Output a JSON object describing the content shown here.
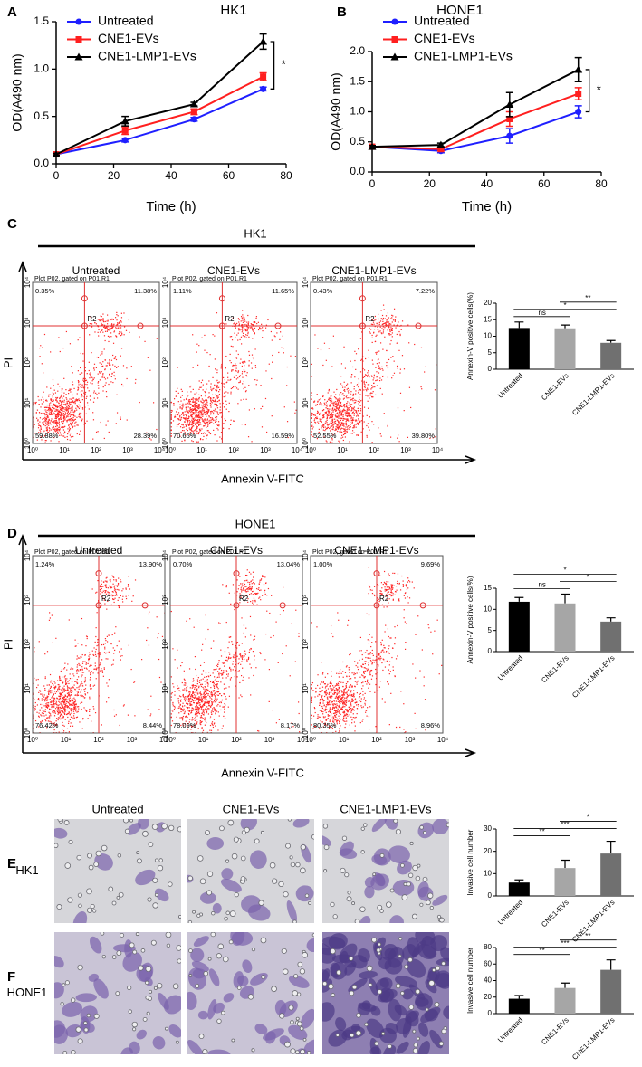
{
  "panel_labels": [
    "A",
    "B",
    "C",
    "D",
    "E",
    "F"
  ],
  "chart_data": [
    {
      "type": "line",
      "title": "HK1",
      "xlabel": "Time (h)",
      "ylabel": "OD(A490 nm)",
      "x": [
        0,
        24,
        48,
        72
      ],
      "xlim": [
        0,
        80
      ],
      "xticks": [
        0,
        20,
        40,
        60,
        80
      ],
      "ylim": [
        0,
        1.5
      ],
      "yticks": [
        {
          "value": 0,
          "label": "0.0"
        },
        {
          "value": 0.5,
          "label": "0.5"
        },
        {
          "value": 1,
          "label": "1.0"
        },
        {
          "value": 1.5,
          "label": "1.5"
        }
      ],
      "legend": "upper left",
      "series": [
        {
          "name": "Untreated",
          "color": "#1f1fff",
          "marker": "circle",
          "values": [
            0.1,
            0.25,
            0.47,
            0.79
          ],
          "errors": [
            0.01,
            0.02,
            0.02,
            0.02
          ]
        },
        {
          "name": "CNE1-EVs",
          "color": "#ff1f1f",
          "marker": "square",
          "values": [
            0.1,
            0.35,
            0.55,
            0.92
          ],
          "errors": [
            0.01,
            0.04,
            0.03,
            0.04
          ]
        },
        {
          "name": "CNE1-LMP1-EVs",
          "color": "#000000",
          "marker": "triangle",
          "values": [
            0.1,
            0.45,
            0.63,
            1.29
          ],
          "errors": [
            0.01,
            0.05,
            0.02,
            0.08
          ]
        }
      ],
      "significance": {
        "label": "*",
        "series": [
          0,
          2
        ]
      }
    },
    {
      "type": "line",
      "title": "HONE1",
      "xlabel": "Time (h)",
      "ylabel": "OD(A490 nm)",
      "x": [
        0,
        24,
        48,
        72
      ],
      "xlim": [
        0,
        80
      ],
      "xticks": [
        0,
        20,
        40,
        60,
        80
      ],
      "ylim": [
        0,
        2
      ],
      "yticks": [
        {
          "value": 0,
          "label": "0.0"
        },
        {
          "value": 0.5,
          "label": "0.5"
        },
        {
          "value": 1,
          "label": "1.0"
        },
        {
          "value": 1.5,
          "label": "1.5"
        },
        {
          "value": 2,
          "label": "2.0"
        }
      ],
      "legend": "upper left",
      "series": [
        {
          "name": "Untreated",
          "color": "#1f1fff",
          "marker": "circle",
          "values": [
            0.42,
            0.35,
            0.6,
            1.0
          ],
          "errors": [
            0.02,
            0.03,
            0.12,
            0.1
          ]
        },
        {
          "name": "CNE1-EVs",
          "color": "#ff1f1f",
          "marker": "square",
          "values": [
            0.42,
            0.38,
            0.88,
            1.3
          ],
          "errors": [
            0.02,
            0.03,
            0.12,
            0.1
          ]
        },
        {
          "name": "CNE1-LMP1-EVs",
          "color": "#000000",
          "marker": "triangle",
          "values": [
            0.42,
            0.45,
            1.12,
            1.7
          ],
          "errors": [
            0.02,
            0.03,
            0.2,
            0.2
          ]
        }
      ],
      "significance": {
        "label": "*",
        "series": [
          0,
          2
        ]
      }
    },
    {
      "type": "bar",
      "ylabel": "Annexin-V positive cells(%)",
      "categories": [
        "Untreated",
        "CNE1-EVs",
        "CNE1-LMP1-EVs"
      ],
      "colors": [
        "#000000",
        "#a6a6a6",
        "#707070"
      ],
      "values": [
        12.5,
        12.4,
        8.0
      ],
      "errors": [
        1.8,
        1.0,
        0.7
      ],
      "ylim": [
        0,
        20
      ],
      "yticks": [
        0,
        5,
        10,
        15,
        20
      ],
      "comparisons": [
        {
          "pair": [
            0,
            1
          ],
          "label": "ns"
        },
        {
          "pair": [
            0,
            2
          ],
          "label": "*"
        },
        {
          "pair": [
            1,
            2
          ],
          "label": "**"
        }
      ]
    },
    {
      "type": "bar",
      "ylabel": "Annexin-V positive cells(%)",
      "categories": [
        "Untreated",
        "CNE1-EVs",
        "CNE1-LMP1-EVs"
      ],
      "colors": [
        "#000000",
        "#a6a6a6",
        "#707070"
      ],
      "values": [
        11.8,
        11.4,
        7.1
      ],
      "errors": [
        1.0,
        2.2,
        0.9
      ],
      "ylim": [
        0,
        15
      ],
      "yticks": [
        0,
        5,
        10,
        15
      ],
      "comparisons": [
        {
          "pair": [
            0,
            1
          ],
          "label": "ns"
        },
        {
          "pair": [
            1,
            2
          ],
          "label": "*"
        },
        {
          "pair": [
            0,
            2
          ],
          "label": "*"
        }
      ]
    },
    {
      "type": "bar",
      "ylabel": "Invasive cell number",
      "categories": [
        "Untreated",
        "CNE1-EVs",
        "CNE1-LMP1-EVs"
      ],
      "colors": [
        "#000000",
        "#a6a6a6",
        "#707070"
      ],
      "values": [
        6,
        12.5,
        19
      ],
      "errors": [
        1.2,
        3.5,
        5.5
      ],
      "ylim": [
        0,
        30
      ],
      "yticks": [
        0,
        10,
        20,
        30
      ],
      "comparisons": [
        {
          "pair": [
            0,
            1
          ],
          "label": "**"
        },
        {
          "pair": [
            0,
            2
          ],
          "label": "***"
        },
        {
          "pair": [
            1,
            2
          ],
          "label": "*"
        }
      ]
    },
    {
      "type": "bar",
      "ylabel": "Invasive cell number",
      "categories": [
        "Untreated",
        "CNE1-EVs",
        "CNE1-LMP1-EVs"
      ],
      "colors": [
        "#000000",
        "#a6a6a6",
        "#707070"
      ],
      "values": [
        18,
        31,
        53
      ],
      "errors": [
        4,
        6,
        12
      ],
      "ylim": [
        0,
        80
      ],
      "yticks": [
        0,
        20,
        40,
        60,
        80
      ],
      "comparisons": [
        {
          "pair": [
            0,
            1
          ],
          "label": "**"
        },
        {
          "pair": [
            0,
            2
          ],
          "label": "***"
        },
        {
          "pair": [
            1,
            2
          ],
          "label": "**"
        }
      ]
    }
  ],
  "flow": [
    {
      "title": "HK1",
      "xlabel": "Annexin V-FITC",
      "ylabel": "PI",
      "ticks": [
        "10⁰",
        "10¹",
        "10²",
        "10³",
        "10⁴"
      ],
      "plots": [
        {
          "title": "Untreated",
          "gate": "Plot P02, gated on P01.R1",
          "region": "R2",
          "quadrants": [
            "0.35%",
            "11.38%",
            "59.88%",
            "28.39%"
          ]
        },
        {
          "title": "CNE1-EVs",
          "gate": "Plot P02, gated on P01.R1",
          "region": "R2",
          "quadrants": [
            "1.11%",
            "11.65%",
            "70.65%",
            "16.59%"
          ]
        },
        {
          "title": "CNE1-LMP1-EVs",
          "gate": "Plot P02, gated on P01.R1",
          "region": "R2",
          "quadrants": [
            "0.43%",
            "7.22%",
            "52.55%",
            "39.80%"
          ]
        }
      ]
    },
    {
      "title": "HONE1",
      "xlabel": "Annexin V-FITC",
      "ylabel": "PI",
      "ticks": [
        "10⁰",
        "10¹",
        "10²",
        "10³",
        "10⁴"
      ],
      "plots": [
        {
          "title": "Untreated",
          "gate": "Plot P02, gated on P01.R1",
          "region": "R2",
          "quadrants": [
            "1.24%",
            "13.90%",
            "76.42%",
            "8.44%"
          ]
        },
        {
          "title": "CNE1-EVs",
          "gate": "Plot P02, gated on P01.R1",
          "region": "R2",
          "quadrants": [
            "0.70%",
            "13.04%",
            "78.09%",
            "8.17%"
          ]
        },
        {
          "title": "CNE1-LMP1-EVs",
          "gate": "Plot P02, gated on P01.R1",
          "region": "R2",
          "quadrants": [
            "1.00%",
            "9.69%",
            "80.35%",
            "8.96%"
          ]
        }
      ]
    }
  ],
  "invasion": {
    "columns": [
      "Untreated",
      "CNE1-EVs",
      "CNE1-LMP1-EVs"
    ],
    "rows": [
      "HK1",
      "HONE1"
    ]
  }
}
